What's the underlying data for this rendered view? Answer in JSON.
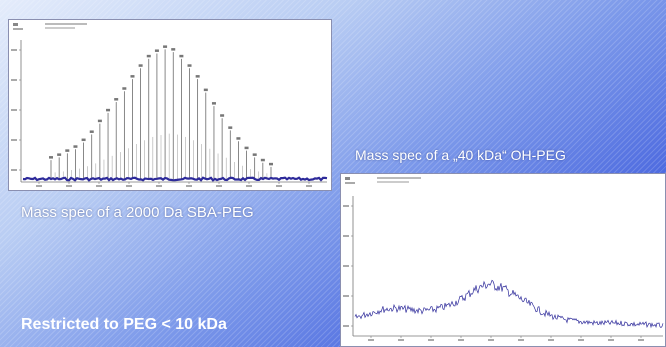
{
  "captions": {
    "left": "Mass spec of a 2000 Da SBA-PEG",
    "right": "Mass spec of a „40 kDa“ OH-PEG"
  },
  "conclusion": "Restricted to PEG < 10 kDa",
  "colors": {
    "trace": "#2d2a9a",
    "background_start": "#e4ecfb",
    "background_end": "#3856d6",
    "text": "#ffffff"
  },
  "chart_data": [
    {
      "type": "line",
      "description": "Mass spectrum: PEG oligomer peaks forming a bell-shaped envelope",
      "peak_rel_intensity": [
        0.14,
        0.16,
        0.19,
        0.22,
        0.27,
        0.33,
        0.41,
        0.49,
        0.57,
        0.65,
        0.74,
        0.82,
        0.89,
        0.93,
        0.96,
        0.94,
        0.89,
        0.82,
        0.74,
        0.64,
        0.54,
        0.45,
        0.36,
        0.28,
        0.21,
        0.16,
        0.12,
        0.09
      ],
      "title": "",
      "xlabel": "",
      "ylabel": "",
      "grid": false
    },
    {
      "type": "line",
      "description": "Noisy mass spectrum with a broad hump",
      "envelope_rel_intensity": [
        0.12,
        0.15,
        0.18,
        0.19,
        0.18,
        0.17,
        0.18,
        0.21,
        0.26,
        0.33,
        0.37,
        0.34,
        0.28,
        0.22,
        0.16,
        0.12,
        0.1,
        0.09,
        0.08,
        0.08,
        0.08,
        0.07,
        0.07,
        0.06
      ],
      "title": "",
      "xlabel": "",
      "ylabel": "",
      "grid": false
    }
  ]
}
